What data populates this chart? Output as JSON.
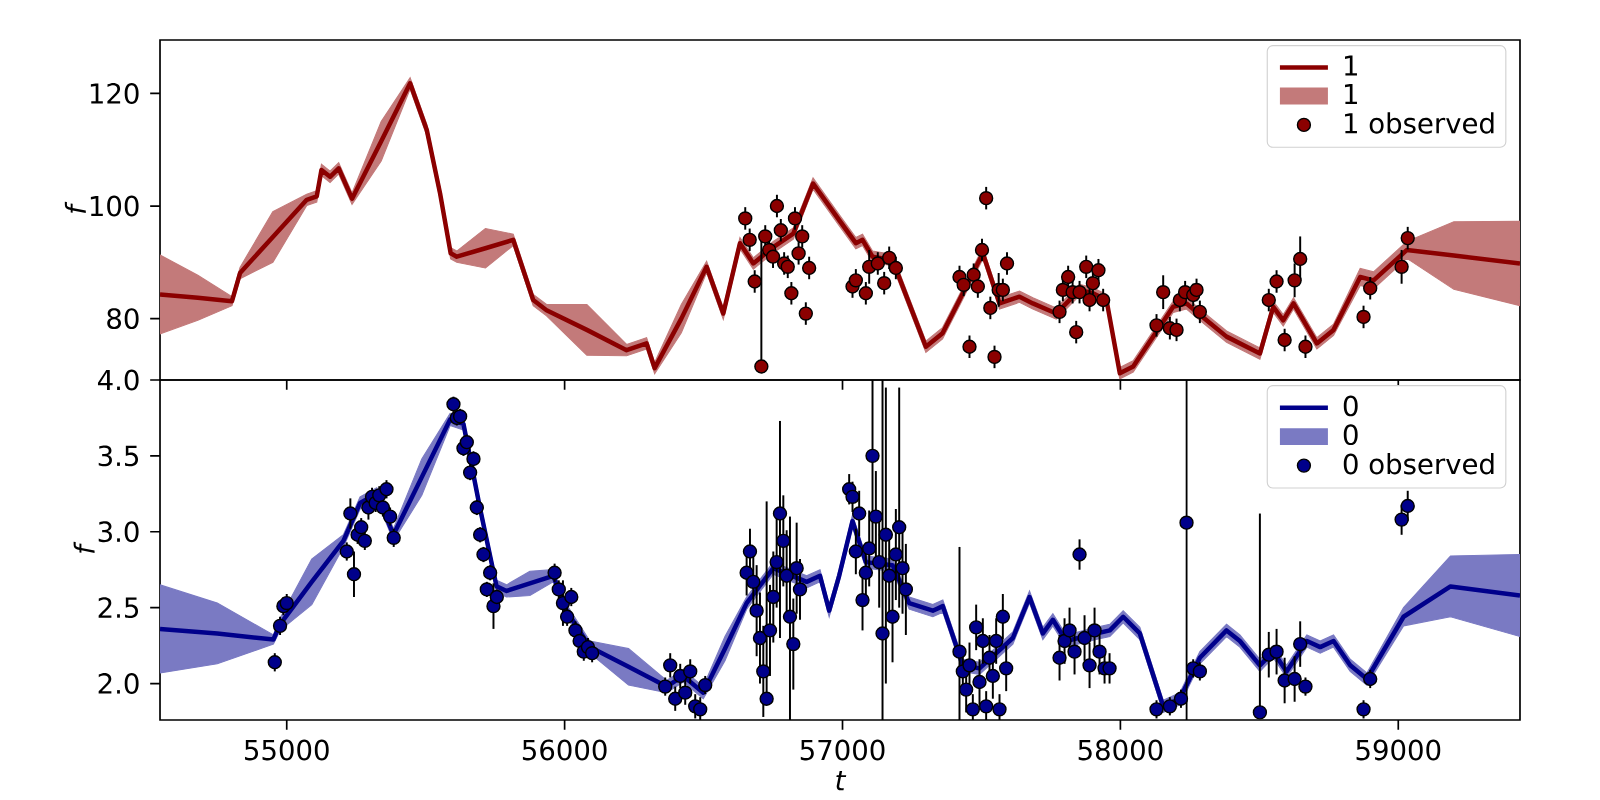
{
  "chart_data": [
    {
      "type": "line",
      "ylabel": "f",
      "xlim": [
        54544,
        59438
      ],
      "ylim": [
        69.1,
        129.5
      ],
      "xticks": [
        55000,
        56000,
        57000,
        58000,
        59000
      ],
      "yticks": [
        80,
        100,
        120
      ],
      "tick_labels": "y",
      "legend": "top right",
      "series": [
        {
          "name": "1",
          "color": "#8b0000",
          "x": [
            54544,
            54680,
            54803,
            54832,
            54950,
            55072,
            55108,
            55125,
            55156,
            55187,
            55235,
            55340,
            55444,
            55504,
            55552,
            55590,
            55612,
            55715,
            55815,
            55887,
            55935,
            56080,
            56223,
            56295,
            56324,
            56420,
            56511,
            56571,
            56631,
            56679,
            56751,
            56823,
            56894,
            56988,
            57048,
            57072,
            57108,
            57180,
            57300,
            57360,
            57421,
            57505,
            57565,
            57637,
            57685,
            57769,
            57853,
            57901,
            57950,
            57998,
            58046,
            58190,
            58238,
            58310,
            58382,
            58502,
            58550,
            58586,
            58623,
            58707,
            58767,
            58863,
            58911,
            59031,
            59200,
            59438
          ],
          "values": [
            84.3,
            83.7,
            83.1,
            88.1,
            94.5,
            101.1,
            101.7,
            106.4,
            105.2,
            106.7,
            101.3,
            111.5,
            121.8,
            113.5,
            102.2,
            91.6,
            91.0,
            92.5,
            94.0,
            83.3,
            81.5,
            78.0,
            74.4,
            75.6,
            71.2,
            80.0,
            89.2,
            80.9,
            93.4,
            89.8,
            92.7,
            95.1,
            104.0,
            97.5,
            93.4,
            94.0,
            91.0,
            90.4,
            75.0,
            77.4,
            83.3,
            91.6,
            82.7,
            83.9,
            82.7,
            80.9,
            85.1,
            84.5,
            83.3,
            70.3,
            71.5,
            82.1,
            82.7,
            79.7,
            76.8,
            73.8,
            82.1,
            79.7,
            82.7,
            75.6,
            78.0,
            87.4,
            86.8,
            92.2,
            91.2,
            89.8
          ],
          "lower": [
            77.3,
            79.7,
            82.3,
            87.1,
            90.0,
            100.1,
            100.7,
            105.4,
            104.2,
            105.7,
            100.3,
            108.0,
            120.8,
            112.5,
            101.2,
            90.6,
            90.0,
            89.0,
            93.0,
            82.3,
            80.5,
            73.5,
            73.4,
            74.6,
            70.2,
            77.5,
            88.2,
            79.9,
            92.4,
            88.8,
            91.7,
            94.1,
            103.0,
            96.5,
            92.4,
            93.0,
            90.0,
            89.4,
            74.0,
            76.4,
            82.3,
            90.6,
            81.7,
            82.9,
            81.7,
            79.9,
            84.1,
            83.5,
            82.3,
            69.3,
            70.5,
            81.1,
            81.7,
            78.7,
            75.8,
            72.8,
            81.1,
            78.7,
            81.7,
            74.6,
            77.0,
            85.9,
            85.3,
            90.7,
            85.2,
            82.3
          ],
          "upper": [
            91.3,
            87.7,
            83.9,
            89.1,
            99.0,
            102.1,
            102.7,
            107.4,
            106.2,
            107.7,
            102.3,
            115.0,
            122.8,
            114.5,
            103.2,
            92.6,
            92.0,
            96.0,
            95.0,
            84.3,
            82.5,
            82.5,
            75.4,
            76.6,
            72.2,
            82.5,
            90.2,
            81.9,
            94.4,
            90.8,
            93.7,
            96.1,
            105.0,
            98.5,
            94.4,
            95.0,
            92.0,
            91.4,
            76.0,
            78.4,
            84.3,
            92.6,
            83.7,
            84.9,
            83.7,
            81.9,
            86.1,
            85.5,
            84.3,
            71.3,
            72.5,
            83.1,
            83.7,
            80.7,
            77.8,
            74.8,
            83.1,
            80.7,
            83.7,
            76.6,
            79.0,
            88.9,
            88.3,
            93.7,
            97.2,
            97.3
          ]
        },
        {
          "name": "1 observed",
          "type": "scatter",
          "color": "#8b0000",
          "x": [
            56650,
            56666,
            56684,
            56708,
            56722,
            56736,
            56750,
            56764,
            56778,
            56790,
            56803,
            56816,
            56829,
            56842,
            56855,
            56868,
            56880,
            57036,
            57048,
            57084,
            57096,
            57127,
            57150,
            57168,
            57192,
            57421,
            57436,
            57457,
            57472,
            57487,
            57502,
            57517,
            57532,
            57547,
            57562,
            57577,
            57592,
            57781,
            57793,
            57812,
            57828,
            57841,
            57853,
            57877,
            57889,
            57901,
            57921,
            57938,
            58130,
            58154,
            58178,
            58202,
            58214,
            58233,
            58262,
            58274,
            58286,
            58534,
            58562,
            58591,
            58627,
            58647,
            58666,
            58875,
            58899,
            59012,
            59034
          ],
          "values": [
            97.8,
            94.0,
            86.6,
            71.5,
            94.6,
            92.2,
            91.0,
            100.0,
            95.7,
            89.8,
            89.2,
            84.5,
            97.8,
            91.6,
            94.6,
            80.9,
            89.0,
            85.7,
            86.8,
            84.5,
            89.2,
            89.8,
            86.3,
            90.8,
            89.0,
            87.4,
            86.0,
            75.0,
            87.8,
            85.7,
            92.2,
            101.4,
            81.9,
            73.2,
            85.1,
            85.1,
            89.8,
            81.2,
            85.1,
            87.4,
            84.7,
            77.6,
            84.7,
            89.2,
            83.3,
            86.3,
            88.6,
            83.3,
            78.8,
            84.7,
            78.3,
            78.0,
            83.3,
            84.7,
            84.2,
            85.1,
            81.2,
            83.3,
            86.6,
            76.2,
            86.8,
            90.6,
            75.0,
            80.3,
            85.4,
            89.2,
            94.3
          ],
          "errors": [
            2,
            2,
            2,
            [
              71.5,
              94
            ],
            2,
            2,
            2,
            2,
            2,
            2,
            2,
            2,
            2,
            2,
            2,
            2,
            2,
            2,
            2,
            2,
            3,
            2,
            2,
            2,
            2,
            2,
            2,
            2,
            2,
            2,
            2,
            2,
            2,
            2,
            3,
            2,
            2,
            2,
            2,
            2,
            2,
            2,
            2,
            2,
            2,
            2,
            2,
            2,
            2,
            3,
            2,
            2,
            2,
            2,
            2,
            2,
            2,
            2,
            2,
            2,
            3,
            4,
            2,
            2,
            2,
            3,
            2
          ]
        }
      ]
    },
    {
      "type": "line",
      "xlabel": "t",
      "ylabel": "f",
      "xlim": [
        54544,
        59438
      ],
      "ylim": [
        1.76,
        4.0
      ],
      "xticks": [
        55000,
        56000,
        57000,
        58000,
        59000
      ],
      "yticks": [
        {
          "value": 2,
          "label": "2.0"
        },
        {
          "value": 2.5,
          "label": "2.5"
        },
        {
          "value": 3,
          "label": "3.0"
        },
        {
          "value": 3.5,
          "label": "3.5"
        },
        {
          "value": 4,
          "label": "4.0"
        }
      ],
      "legend": "top right",
      "series": [
        {
          "name": "0",
          "color": "#00008b",
          "x": [
            54544,
            54750,
            54952,
            54976,
            55090,
            55204,
            55264,
            55324,
            55384,
            55486,
            55588,
            55636,
            55695,
            55755,
            55791,
            55875,
            55959,
            56007,
            56091,
            56230,
            56367,
            56427,
            56499,
            56577,
            56655,
            56751,
            56871,
            56919,
            56952,
            56988,
            57036,
            57084,
            57180,
            57240,
            57325,
            57361,
            57433,
            57493,
            57613,
            57673,
            57721,
            57757,
            57805,
            57913,
            57962,
            58010,
            58070,
            58154,
            58214,
            58286,
            58382,
            58430,
            58502,
            58550,
            58598,
            58671,
            58719,
            58767,
            58827,
            58887,
            59019,
            59188,
            59438
          ],
          "values": [
            2.36,
            2.33,
            2.29,
            2.39,
            2.67,
            2.94,
            3.19,
            3.25,
            2.98,
            3.36,
            3.74,
            3.71,
            3.16,
            2.64,
            2.61,
            2.66,
            2.71,
            2.48,
            2.24,
            2.11,
            1.98,
            2.05,
            1.94,
            2.23,
            2.53,
            2.76,
            2.67,
            2.71,
            2.48,
            2.71,
            3.07,
            2.8,
            2.78,
            2.53,
            2.48,
            2.51,
            2.12,
            2.1,
            2.3,
            2.57,
            2.33,
            2.42,
            2.28,
            2.33,
            2.35,
            2.44,
            2.33,
            1.85,
            1.9,
            2.17,
            2.35,
            2.28,
            2.12,
            2.21,
            2.08,
            2.28,
            2.24,
            2.28,
            2.12,
            2.03,
            2.44,
            2.64,
            2.58
          ],
          "lower": [
            2.07,
            2.13,
            2.26,
            2.35,
            2.52,
            2.9,
            3.15,
            3.21,
            2.94,
            3.24,
            3.7,
            3.67,
            3.12,
            2.6,
            2.57,
            2.58,
            2.67,
            2.44,
            2.2,
            1.99,
            1.94,
            2.01,
            1.9,
            2.15,
            2.49,
            2.72,
            2.63,
            2.67,
            2.44,
            2.67,
            3.03,
            2.76,
            2.74,
            2.49,
            2.44,
            2.47,
            2.08,
            2.06,
            2.26,
            2.53,
            2.29,
            2.38,
            2.24,
            2.29,
            2.31,
            2.4,
            2.29,
            1.81,
            1.86,
            2.13,
            2.31,
            2.24,
            2.08,
            2.17,
            2.04,
            2.24,
            2.2,
            2.24,
            2.08,
            1.99,
            2.38,
            2.44,
            2.31
          ],
          "upper": [
            2.65,
            2.53,
            2.32,
            2.43,
            2.82,
            2.98,
            3.23,
            3.29,
            3.02,
            3.48,
            3.78,
            3.75,
            3.2,
            2.68,
            2.65,
            2.74,
            2.75,
            2.52,
            2.28,
            2.23,
            2.02,
            2.09,
            1.98,
            2.31,
            2.57,
            2.8,
            2.71,
            2.75,
            2.52,
            2.75,
            3.11,
            2.84,
            2.82,
            2.57,
            2.52,
            2.55,
            2.16,
            2.14,
            2.34,
            2.61,
            2.37,
            2.46,
            2.32,
            2.37,
            2.39,
            2.48,
            2.37,
            1.89,
            1.94,
            2.21,
            2.39,
            2.32,
            2.16,
            2.25,
            2.12,
            2.32,
            2.28,
            2.32,
            2.16,
            2.07,
            2.5,
            2.84,
            2.85
          ]
        },
        {
          "name": "0 observed",
          "type": "scatter",
          "color": "#00008b",
          "x": [
            54957,
            54976,
            54988,
            55000,
            55216,
            55229,
            55242,
            55255,
            55268,
            55281,
            55294,
            55307,
            55320,
            55333,
            55346,
            55359,
            55372,
            55385,
            55600,
            55612,
            55624,
            55636,
            55648,
            55660,
            55672,
            55684,
            55696,
            55708,
            55720,
            55732,
            55744,
            55756,
            55964,
            55979,
            55994,
            56009,
            56024,
            56039,
            56054,
            56069,
            56084,
            56099,
            56362,
            56380,
            56398,
            56416,
            56434,
            56452,
            56470,
            56488,
            56506,
            56655,
            56667,
            56679,
            56691,
            56703,
            56715,
            56727,
            56739,
            56751,
            56763,
            56775,
            56787,
            56799,
            56811,
            56823,
            56835,
            56847,
            57024,
            57036,
            57048,
            57060,
            57072,
            57084,
            57096,
            57108,
            57120,
            57132,
            57144,
            57156,
            57168,
            57180,
            57192,
            57204,
            57216,
            57228,
            57421,
            57433,
            57445,
            57457,
            57469,
            57481,
            57493,
            57505,
            57517,
            57529,
            57541,
            57553,
            57565,
            57577,
            57589,
            57781,
            57799,
            57817,
            57835,
            57853,
            57871,
            57889,
            57907,
            57925,
            57943,
            57961,
            58130,
            58178,
            58218,
            58238,
            58262,
            58286,
            58502,
            58534,
            58562,
            58591,
            58627,
            58647,
            58666,
            58875,
            58899,
            59012,
            59034
          ],
          "values": [
            2.14,
            2.38,
            2.51,
            2.53,
            2.87,
            3.12,
            2.72,
            2.98,
            3.03,
            2.94,
            3.16,
            3.23,
            3.19,
            3.24,
            3.16,
            3.28,
            3.1,
            2.96,
            3.84,
            3.75,
            3.76,
            3.55,
            3.59,
            3.39,
            3.48,
            3.16,
            2.98,
            2.85,
            2.62,
            2.73,
            2.51,
            2.57,
            2.73,
            2.62,
            2.53,
            2.44,
            2.57,
            2.35,
            2.28,
            2.21,
            2.24,
            2.2,
            1.98,
            2.12,
            1.9,
            2.05,
            1.94,
            2.08,
            1.85,
            1.83,
            1.99,
            2.73,
            2.87,
            2.67,
            2.48,
            2.3,
            2.08,
            1.9,
            2.35,
            2.57,
            2.8,
            3.12,
            2.94,
            2.71,
            2.44,
            2.26,
            2.76,
            2.62,
            3.28,
            3.23,
            2.87,
            3.12,
            2.55,
            2.73,
            2.89,
            3.5,
            3.1,
            2.8,
            2.33,
            2.98,
            2.71,
            2.44,
            2.85,
            3.03,
            2.76,
            2.62,
            2.21,
            2.08,
            1.96,
            2.12,
            1.83,
            2.37,
            2.01,
            2.28,
            1.85,
            2.17,
            2.05,
            2.28,
            1.83,
            2.44,
            2.1,
            2.17,
            2.28,
            2.35,
            2.21,
            2.85,
            2.3,
            2.12,
            2.35,
            2.21,
            2.1,
            2.1,
            1.83,
            1.85,
            1.9,
            3.06,
            2.1,
            2.08,
            1.81,
            2.19,
            2.21,
            2.02,
            2.03,
            2.26,
            1.98,
            1.83,
            2.03,
            3.08,
            3.17
          ],
          "errors": [
            0.06,
            0.06,
            0.06,
            0.06,
            0.06,
            0.1,
            0.15,
            0.06,
            0.06,
            0.06,
            0.08,
            0.06,
            0.06,
            0.06,
            0.06,
            0.06,
            0.06,
            0.06,
            0.05,
            0.05,
            0.05,
            0.05,
            0.05,
            0.05,
            0.05,
            0.05,
            0.05,
            0.05,
            0.05,
            0.05,
            0.15,
            0.05,
            0.06,
            0.06,
            0.15,
            0.06,
            0.06,
            0.06,
            0.06,
            0.06,
            0.06,
            0.06,
            0.06,
            0.08,
            0.08,
            0.08,
            0.08,
            0.08,
            0.08,
            0.08,
            0.06,
            0.15,
            0.15,
            0.2,
            0.3,
            0.3,
            0.3,
            [
              1.9,
              3.2
            ],
            0.3,
            0.3,
            0.3,
            [
              2.3,
              3.73
            ],
            0.3,
            0.3,
            [
              1.76,
              3.1
            ],
            0.3,
            0.3,
            0.2,
            0.1,
            0.1,
            0.15,
            0.15,
            0.2,
            0.2,
            0.25,
            [
              2.9,
              4.0
            ],
            0.3,
            0.3,
            [
              1.76,
              4.0
            ],
            [
              2.0,
              3.95
            ],
            0.3,
            0.3,
            0.3,
            [
              2.5,
              3.95
            ],
            0.3,
            0.3,
            [
              1.76,
              2.9
            ],
            0.15,
            0.15,
            0.15,
            0.1,
            0.15,
            0.15,
            0.15,
            0.1,
            0.15,
            0.15,
            0.15,
            0.1,
            0.15,
            0.15,
            0.15,
            0.15,
            0.15,
            0.15,
            0.1,
            0.15,
            0.15,
            0.15,
            0.15,
            0.1,
            0.1,
            0.06,
            0.06,
            0.06,
            [
              1.76,
              4.0
            ],
            0.06,
            0.06,
            [
              1.81,
              3.12
            ],
            0.15,
            0.15,
            0.15,
            0.15,
            0.15,
            0.06,
            0.06,
            0.06,
            0.1,
            0.1
          ]
        }
      ]
    }
  ]
}
